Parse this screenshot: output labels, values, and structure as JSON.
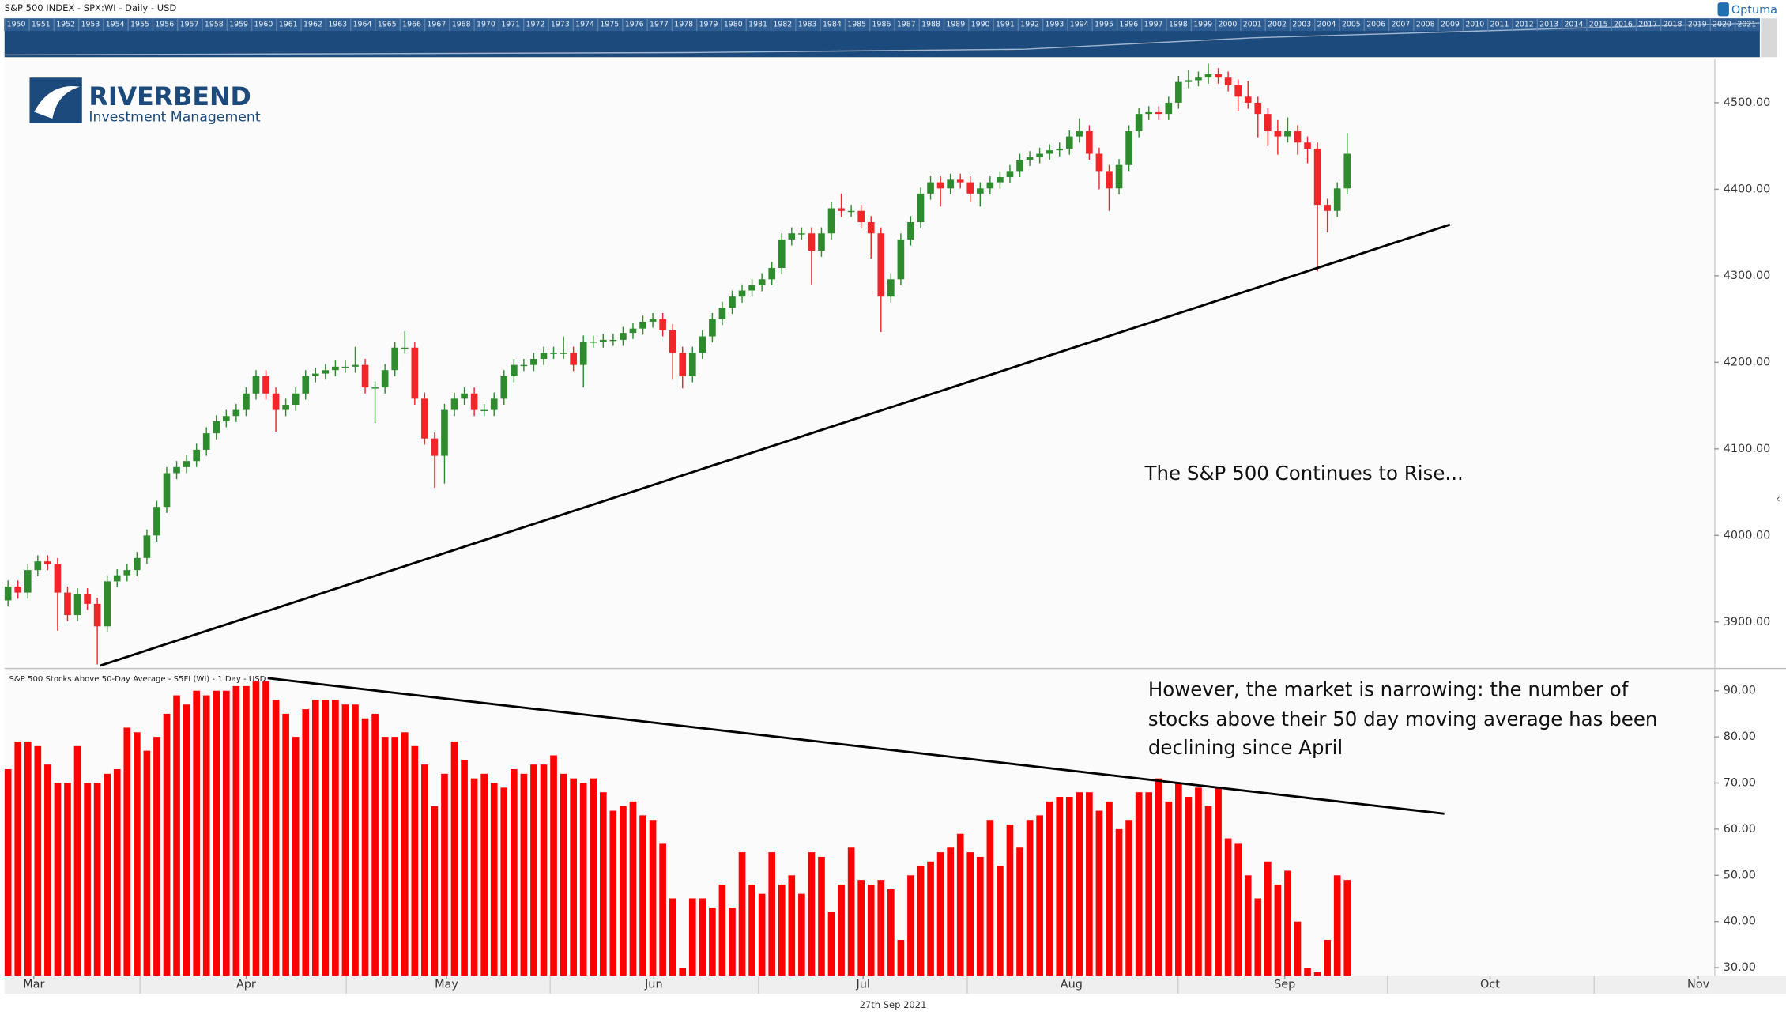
{
  "header": {
    "title": "S&P 500 INDEX - SPX:WI - Daily - USD",
    "brand": "Optuma",
    "date": "27th Sep 2021"
  },
  "logo": {
    "name": "RIVERBEND",
    "tagline": "Investment Management"
  },
  "navigator": {
    "years": [
      "1950",
      "1951",
      "1952",
      "1953",
      "1954",
      "1955",
      "1956",
      "1957",
      "1958",
      "1959",
      "1960",
      "1961",
      "1962",
      "1963",
      "1964",
      "1965",
      "1966",
      "1967",
      "1968",
      "1970",
      "1971",
      "1972",
      "1973",
      "1974",
      "1975",
      "1976",
      "1977",
      "1978",
      "1979",
      "1980",
      "1981",
      "1982",
      "1983",
      "1984",
      "1985",
      "1986",
      "1987",
      "1988",
      "1989",
      "1990",
      "1991",
      "1992",
      "1993",
      "1994",
      "1995",
      "1996",
      "1997",
      "1998",
      "1999",
      "2000",
      "2001",
      "2002",
      "2003",
      "2004",
      "2005",
      "2006",
      "2007",
      "2008",
      "2009",
      "2010",
      "2011",
      "2012",
      "2013",
      "2014",
      "2015",
      "2016",
      "2017",
      "2018",
      "2019",
      "2020",
      "2021"
    ]
  },
  "chart_data": [
    {
      "type": "candlestick",
      "annotation": "The S&P 500 Continues to Rise...",
      "up_color": "#2e8b2e",
      "down_color": "#f0262a",
      "xlim": [
        -0.35,
        172
      ],
      "xticks": [
        {
          "value": 2.6,
          "label": "Mar"
        },
        {
          "value": 24,
          "label": "Apr"
        },
        {
          "value": 44.2,
          "label": "May"
        },
        {
          "value": 65.1,
          "label": "Jun"
        },
        {
          "value": 86.2,
          "label": "Jul"
        },
        {
          "value": 107.2,
          "label": "Aug"
        },
        {
          "value": 128.7,
          "label": "Sep"
        },
        {
          "value": 149.4,
          "label": "Oct"
        },
        {
          "value": 170.4,
          "label": "Nov"
        }
      ],
      "ylim": [
        3847,
        4550
      ],
      "yticks": [
        {
          "value": 3900,
          "label": "3900.00"
        },
        {
          "value": 4000,
          "label": "4000.00"
        },
        {
          "value": 4100,
          "label": "4100.00"
        },
        {
          "value": 4200,
          "label": "4200.00"
        },
        {
          "value": 4300,
          "label": "4300.00"
        },
        {
          "value": 4400,
          "label": "4400.00"
        },
        {
          "value": 4500,
          "label": "4500.00"
        }
      ],
      "open": [
        3925,
        3941,
        3934,
        3960,
        3970,
        3967,
        3934,
        3908,
        3932,
        3921,
        3895,
        3947,
        3954,
        3960,
        3974,
        4000,
        4033,
        4072,
        4079,
        4086,
        4099,
        4118,
        4132,
        4138,
        4145,
        4164,
        4184,
        4164,
        4145,
        4151,
        4164,
        4184,
        4187,
        4191,
        4195,
        4195,
        4197,
        4171,
        4171,
        4191,
        4217,
        4217,
        4158,
        4112,
        4092,
        4145,
        4158,
        4164,
        4145,
        4145,
        4158,
        4184,
        4197,
        4197,
        4204,
        4211,
        4211,
        4211,
        4197,
        4224,
        4224,
        4226,
        4226,
        4234,
        4239,
        4247,
        4250,
        4237,
        4211,
        4184,
        4211,
        4230,
        4250,
        4263,
        4276,
        4283,
        4289,
        4296,
        4309,
        4342,
        4349,
        4349,
        4329,
        4349,
        4378,
        4375,
        4375,
        4362,
        4349,
        4276,
        4296,
        4342,
        4362,
        4395,
        4408,
        4401,
        4411,
        4408,
        4395,
        4401,
        4408,
        4414,
        4421,
        4434,
        4437,
        4441,
        4445,
        4447,
        4461,
        4467,
        4441,
        4421,
        4401,
        4428,
        4467,
        4487,
        4489,
        4487,
        4500,
        4524,
        4526,
        4529,
        4533,
        4529,
        4520,
        4507,
        4500,
        4487,
        4467,
        4461,
        4467,
        4454,
        4447,
        4382,
        4375,
        4401
      ],
      "high": [
        3948,
        3948,
        3967,
        3977,
        3977,
        3974,
        3941,
        3939,
        3939,
        3928,
        3954,
        3961,
        3967,
        3981,
        4007,
        4040,
        4079,
        4086,
        4093,
        4106,
        4125,
        4139,
        4145,
        4152,
        4171,
        4191,
        4191,
        4171,
        4158,
        4171,
        4191,
        4194,
        4198,
        4202,
        4202,
        4218,
        4204,
        4178,
        4198,
        4224,
        4236,
        4224,
        4165,
        4119,
        4152,
        4165,
        4171,
        4171,
        4152,
        4165,
        4191,
        4204,
        4204,
        4211,
        4218,
        4218,
        4230,
        4218,
        4231,
        4231,
        4233,
        4233,
        4241,
        4246,
        4254,
        4257,
        4257,
        4244,
        4218,
        4218,
        4237,
        4257,
        4270,
        4283,
        4290,
        4296,
        4303,
        4316,
        4349,
        4356,
        4356,
        4356,
        4356,
        4385,
        4395,
        4382,
        4382,
        4369,
        4356,
        4303,
        4349,
        4369,
        4402,
        4415,
        4415,
        4418,
        4418,
        4415,
        4408,
        4415,
        4421,
        4428,
        4441,
        4444,
        4448,
        4452,
        4454,
        4468,
        4482,
        4474,
        4448,
        4428,
        4435,
        4474,
        4494,
        4496,
        4496,
        4507,
        4531,
        4538,
        4536,
        4545,
        4540,
        4536,
        4527,
        4525,
        4507,
        4494,
        4480,
        4483,
        4474,
        4461,
        4454,
        4389,
        4408,
        4465
      ],
      "low": [
        3918,
        3927,
        3927,
        3953,
        3960,
        3890,
        3901,
        3901,
        3914,
        3851,
        3888,
        3940,
        3947,
        3953,
        3967,
        3993,
        4026,
        4065,
        4072,
        4079,
        4092,
        4111,
        4125,
        4131,
        4138,
        4157,
        4157,
        4120,
        4138,
        4144,
        4157,
        4177,
        4180,
        4184,
        4188,
        4188,
        4164,
        4130,
        4164,
        4184,
        4210,
        4151,
        4105,
        4055,
        4060,
        4138,
        4151,
        4138,
        4138,
        4138,
        4151,
        4177,
        4190,
        4190,
        4197,
        4204,
        4204,
        4190,
        4171,
        4217,
        4217,
        4219,
        4219,
        4227,
        4232,
        4240,
        4230,
        4180,
        4170,
        4177,
        4204,
        4223,
        4243,
        4256,
        4269,
        4276,
        4282,
        4289,
        4302,
        4335,
        4342,
        4290,
        4322,
        4342,
        4368,
        4368,
        4355,
        4320,
        4235,
        4269,
        4289,
        4335,
        4355,
        4388,
        4380,
        4394,
        4401,
        4385,
        4380,
        4394,
        4401,
        4407,
        4414,
        4427,
        4430,
        4434,
        4438,
        4440,
        4454,
        4434,
        4400,
        4375,
        4394,
        4421,
        4460,
        4480,
        4480,
        4480,
        4493,
        4517,
        4519,
        4522,
        4522,
        4513,
        4490,
        4493,
        4460,
        4450,
        4440,
        4454,
        4440,
        4430,
        4305,
        4350,
        4368,
        4394
      ],
      "close": [
        3941,
        3934,
        3960,
        3970,
        3967,
        3934,
        3908,
        3932,
        3921,
        3895,
        3947,
        3954,
        3960,
        3974,
        4000,
        4033,
        4072,
        4079,
        4086,
        4099,
        4118,
        4132,
        4138,
        4145,
        4164,
        4184,
        4164,
        4145,
        4151,
        4164,
        4184,
        4187,
        4191,
        4195,
        4195,
        4197,
        4171,
        4171,
        4191,
        4217,
        4217,
        4158,
        4112,
        4092,
        4145,
        4158,
        4164,
        4145,
        4145,
        4158,
        4184,
        4197,
        4197,
        4204,
        4211,
        4211,
        4211,
        4197,
        4224,
        4224,
        4226,
        4226,
        4234,
        4239,
        4247,
        4250,
        4237,
        4211,
        4184,
        4211,
        4230,
        4250,
        4263,
        4276,
        4283,
        4289,
        4296,
        4309,
        4342,
        4349,
        4349,
        4329,
        4349,
        4378,
        4375,
        4375,
        4362,
        4349,
        4276,
        4296,
        4342,
        4362,
        4395,
        4408,
        4401,
        4411,
        4408,
        4395,
        4401,
        4408,
        4414,
        4421,
        4434,
        4437,
        4441,
        4445,
        4447,
        4461,
        4467,
        4441,
        4421,
        4401,
        4428,
        4467,
        4487,
        4489,
        4487,
        4500,
        4524,
        4526,
        4529,
        4533,
        4529,
        4520,
        4507,
        4500,
        4487,
        4467,
        4461,
        4467,
        4454,
        4447,
        4382,
        4375,
        4401,
        4441
      ]
    },
    {
      "type": "bar",
      "title": "S&P 500 Stocks Above 50-Day Average - S5FI (WI) - 1 Day - USD",
      "annotation": [
        "However, the market is narrowing: the number of",
        "stocks above their 50 day moving average has been",
        "declining since April"
      ],
      "color": "#ff0000",
      "ylim": [
        28.3,
        94.7
      ],
      "yticks": [
        {
          "value": 30,
          "label": "30.00"
        },
        {
          "value": 40,
          "label": "40.00"
        },
        {
          "value": 50,
          "label": "50.00"
        },
        {
          "value": 60,
          "label": "60.00"
        },
        {
          "value": 70,
          "label": "70.00"
        },
        {
          "value": 80,
          "label": "80.00"
        },
        {
          "value": 90,
          "label": "90.00"
        }
      ],
      "values": [
        73,
        79,
        79,
        78,
        74,
        70,
        70,
        78,
        70,
        70,
        72,
        73,
        82,
        81,
        77,
        80,
        85,
        89,
        87,
        90,
        89,
        90,
        90,
        91,
        91,
        92,
        92,
        88,
        85,
        80,
        86,
        88,
        88,
        88,
        87,
        87,
        84,
        85,
        80,
        80,
        81,
        78,
        74,
        65,
        72,
        79,
        75,
        71,
        72,
        70,
        69,
        73,
        72,
        74,
        74,
        76,
        72,
        71,
        70,
        71,
        68,
        64,
        65,
        66,
        63,
        62,
        57,
        45,
        30,
        45,
        45,
        43,
        48,
        43,
        55,
        48,
        46,
        55,
        48,
        50,
        46,
        55,
        54,
        42,
        48,
        56,
        49,
        48,
        49,
        47,
        36,
        50,
        52,
        53,
        55,
        56,
        59,
        55,
        54,
        62,
        52,
        61,
        56,
        62,
        63,
        66,
        67,
        67,
        68,
        68,
        64,
        66,
        60,
        62,
        68,
        68,
        71,
        66,
        70,
        67,
        69,
        65,
        69,
        58,
        57,
        50,
        45,
        53,
        48,
        51,
        40,
        30,
        29,
        36,
        50,
        49
      ]
    }
  ]
}
